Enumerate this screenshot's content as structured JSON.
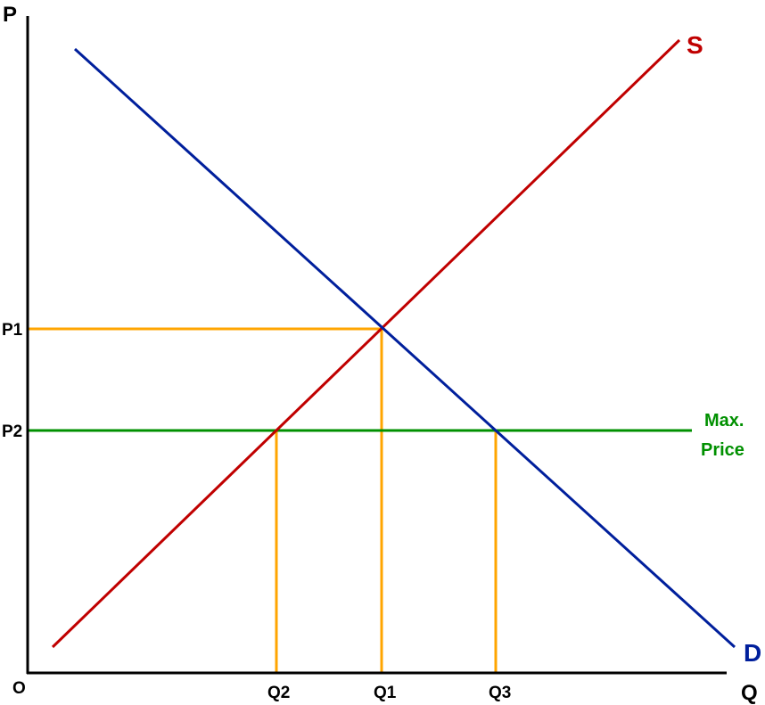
{
  "axes": {
    "y_label": "P",
    "x_label": "Q",
    "origin_label": "O"
  },
  "curves": {
    "supply": {
      "label": "S",
      "color": "#c00000"
    },
    "demand": {
      "label": "D",
      "color": "#001f9c"
    }
  },
  "price_ceiling": {
    "label_line1": "Max.",
    "label_line2": "Price",
    "color": "#009000"
  },
  "guides": {
    "color": "#ffa500"
  },
  "ticks": {
    "p1": "P1",
    "p2": "P2",
    "q1": "Q1",
    "q2": "Q2",
    "q3": "Q3"
  }
}
